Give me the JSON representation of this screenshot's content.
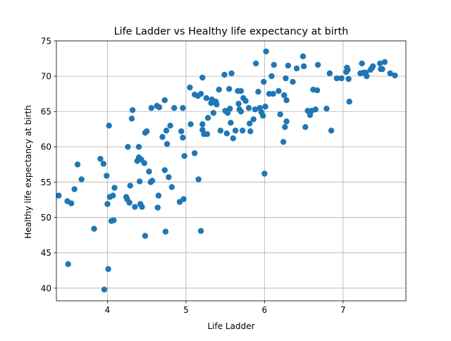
{
  "chart_data": {
    "type": "scatter",
    "title": "Life Ladder vs Healthy life expectancy at birth",
    "xlabel": "Life Ladder",
    "ylabel": "Healthy life expectancy at birth",
    "xlim": [
      3.35,
      7.8
    ],
    "ylim": [
      38.2,
      75
    ],
    "xticks": [
      4,
      5,
      6,
      7
    ],
    "yticks": [
      40,
      45,
      50,
      55,
      60,
      65,
      70,
      75
    ],
    "grid": true,
    "marker_color": "#1f77b4",
    "points": [
      [
        3.38,
        53.1
      ],
      [
        3.49,
        52.3
      ],
      [
        3.5,
        43.4
      ],
      [
        3.54,
        52.0
      ],
      [
        3.58,
        54.0
      ],
      [
        3.62,
        57.5
      ],
      [
        3.67,
        55.4
      ],
      [
        3.83,
        48.4
      ],
      [
        3.91,
        58.3
      ],
      [
        3.95,
        57.6
      ],
      [
        3.96,
        39.8
      ],
      [
        3.99,
        55.9
      ],
      [
        4.0,
        51.9
      ],
      [
        4.01,
        42.7
      ],
      [
        4.02,
        63.0
      ],
      [
        4.03,
        52.9
      ],
      [
        4.05,
        49.5
      ],
      [
        4.07,
        53.1
      ],
      [
        4.08,
        49.6
      ],
      [
        4.09,
        54.2
      ],
      [
        4.24,
        52.9
      ],
      [
        4.25,
        52.6
      ],
      [
        4.26,
        60.0
      ],
      [
        4.28,
        52.1
      ],
      [
        4.29,
        54.5
      ],
      [
        4.31,
        64.0
      ],
      [
        4.32,
        65.2
      ],
      [
        4.35,
        51.5
      ],
      [
        4.38,
        58.0
      ],
      [
        4.4,
        58.5
      ],
      [
        4.4,
        60.0
      ],
      [
        4.41,
        55.1
      ],
      [
        4.42,
        51.9
      ],
      [
        4.43,
        58.2
      ],
      [
        4.44,
        51.5
      ],
      [
        4.47,
        57.7
      ],
      [
        4.48,
        47.4
      ],
      [
        4.48,
        62.0
      ],
      [
        4.5,
        62.2
      ],
      [
        4.53,
        56.5
      ],
      [
        4.55,
        55.0
      ],
      [
        4.56,
        65.5
      ],
      [
        4.57,
        55.2
      ],
      [
        4.63,
        65.8
      ],
      [
        4.64,
        51.4
      ],
      [
        4.65,
        53.1
      ],
      [
        4.66,
        65.6
      ],
      [
        4.7,
        61.4
      ],
      [
        4.73,
        66.6
      ],
      [
        4.73,
        56.7
      ],
      [
        4.74,
        48.0
      ],
      [
        4.75,
        62.3
      ],
      [
        4.76,
        60.4
      ],
      [
        4.78,
        55.7
      ],
      [
        4.8,
        63.0
      ],
      [
        4.82,
        54.3
      ],
      [
        4.85,
        65.5
      ],
      [
        4.92,
        52.2
      ],
      [
        4.94,
        62.2
      ],
      [
        4.96,
        65.5
      ],
      [
        4.96,
        61.3
      ],
      [
        4.97,
        52.6
      ],
      [
        4.98,
        58.7
      ],
      [
        5.05,
        68.4
      ],
      [
        5.06,
        63.2
      ],
      [
        5.11,
        67.4
      ],
      [
        5.11,
        59.1
      ],
      [
        5.15,
        67.2
      ],
      [
        5.16,
        55.4
      ],
      [
        5.19,
        67.5
      ],
      [
        5.19,
        48.1
      ],
      [
        5.21,
        69.8
      ],
      [
        5.21,
        63.2
      ],
      [
        5.21,
        62.4
      ],
      [
        5.23,
        61.8
      ],
      [
        5.26,
        66.9
      ],
      [
        5.27,
        61.8
      ],
      [
        5.28,
        64.1
      ],
      [
        5.32,
        66.2
      ],
      [
        5.33,
        66.7
      ],
      [
        5.35,
        64.8
      ],
      [
        5.38,
        66.4
      ],
      [
        5.39,
        66.0
      ],
      [
        5.42,
        68.1
      ],
      [
        5.44,
        62.3
      ],
      [
        5.49,
        70.2
      ],
      [
        5.5,
        65.1
      ],
      [
        5.52,
        61.9
      ],
      [
        5.53,
        64.8
      ],
      [
        5.55,
        68.2
      ],
      [
        5.56,
        65.4
      ],
      [
        5.57,
        63.4
      ],
      [
        5.58,
        70.4
      ],
      [
        5.6,
        61.2
      ],
      [
        5.63,
        62.3
      ],
      [
        5.66,
        67.9
      ],
      [
        5.67,
        66.1
      ],
      [
        5.68,
        65.3
      ],
      [
        5.7,
        67.9
      ],
      [
        5.7,
        65.0
      ],
      [
        5.72,
        62.3
      ],
      [
        5.73,
        66.9
      ],
      [
        5.76,
        66.5
      ],
      [
        5.8,
        65.5
      ],
      [
        5.81,
        63.3
      ],
      [
        5.82,
        62.2
      ],
      [
        5.86,
        63.9
      ],
      [
        5.88,
        65.3
      ],
      [
        5.89,
        71.8
      ],
      [
        5.92,
        67.8
      ],
      [
        5.94,
        65.5
      ],
      [
        5.96,
        64.9
      ],
      [
        5.98,
        64.4
      ],
      [
        5.99,
        69.2
      ],
      [
        6.0,
        56.2
      ],
      [
        6.01,
        65.7
      ],
      [
        6.02,
        73.5
      ],
      [
        6.06,
        67.5
      ],
      [
        6.09,
        70.0
      ],
      [
        6.11,
        67.5
      ],
      [
        6.12,
        71.6
      ],
      [
        6.18,
        67.9
      ],
      [
        6.2,
        64.6
      ],
      [
        6.24,
        60.7
      ],
      [
        6.25,
        67.3
      ],
      [
        6.26,
        62.8
      ],
      [
        6.27,
        69.7
      ],
      [
        6.28,
        66.6
      ],
      [
        6.28,
        63.6
      ],
      [
        6.3,
        71.5
      ],
      [
        6.36,
        69.2
      ],
      [
        6.41,
        71.1
      ],
      [
        6.49,
        72.8
      ],
      [
        6.5,
        71.4
      ],
      [
        6.52,
        62.8
      ],
      [
        6.55,
        65.1
      ],
      [
        6.58,
        64.5
      ],
      [
        6.6,
        65.1
      ],
      [
        6.62,
        68.1
      ],
      [
        6.65,
        65.3
      ],
      [
        6.67,
        68.0
      ],
      [
        6.68,
        71.6
      ],
      [
        6.79,
        65.4
      ],
      [
        6.83,
        70.4
      ],
      [
        6.85,
        62.3
      ],
      [
        6.92,
        69.7
      ],
      [
        6.98,
        69.7
      ],
      [
        7.04,
        70.6
      ],
      [
        7.05,
        71.2
      ],
      [
        7.06,
        70.9
      ],
      [
        7.07,
        69.6
      ],
      [
        7.08,
        66.4
      ],
      [
        7.22,
        70.4
      ],
      [
        7.24,
        71.8
      ],
      [
        7.26,
        70.5
      ],
      [
        7.29,
        70.5
      ],
      [
        7.3,
        70.0
      ],
      [
        7.35,
        70.9
      ],
      [
        7.37,
        71.2
      ],
      [
        7.38,
        71.4
      ],
      [
        7.47,
        71.8
      ],
      [
        7.48,
        71.0
      ],
      [
        7.5,
        71.0
      ],
      [
        7.53,
        72.0
      ],
      [
        7.6,
        70.4
      ],
      [
        7.66,
        70.1
      ]
    ]
  }
}
